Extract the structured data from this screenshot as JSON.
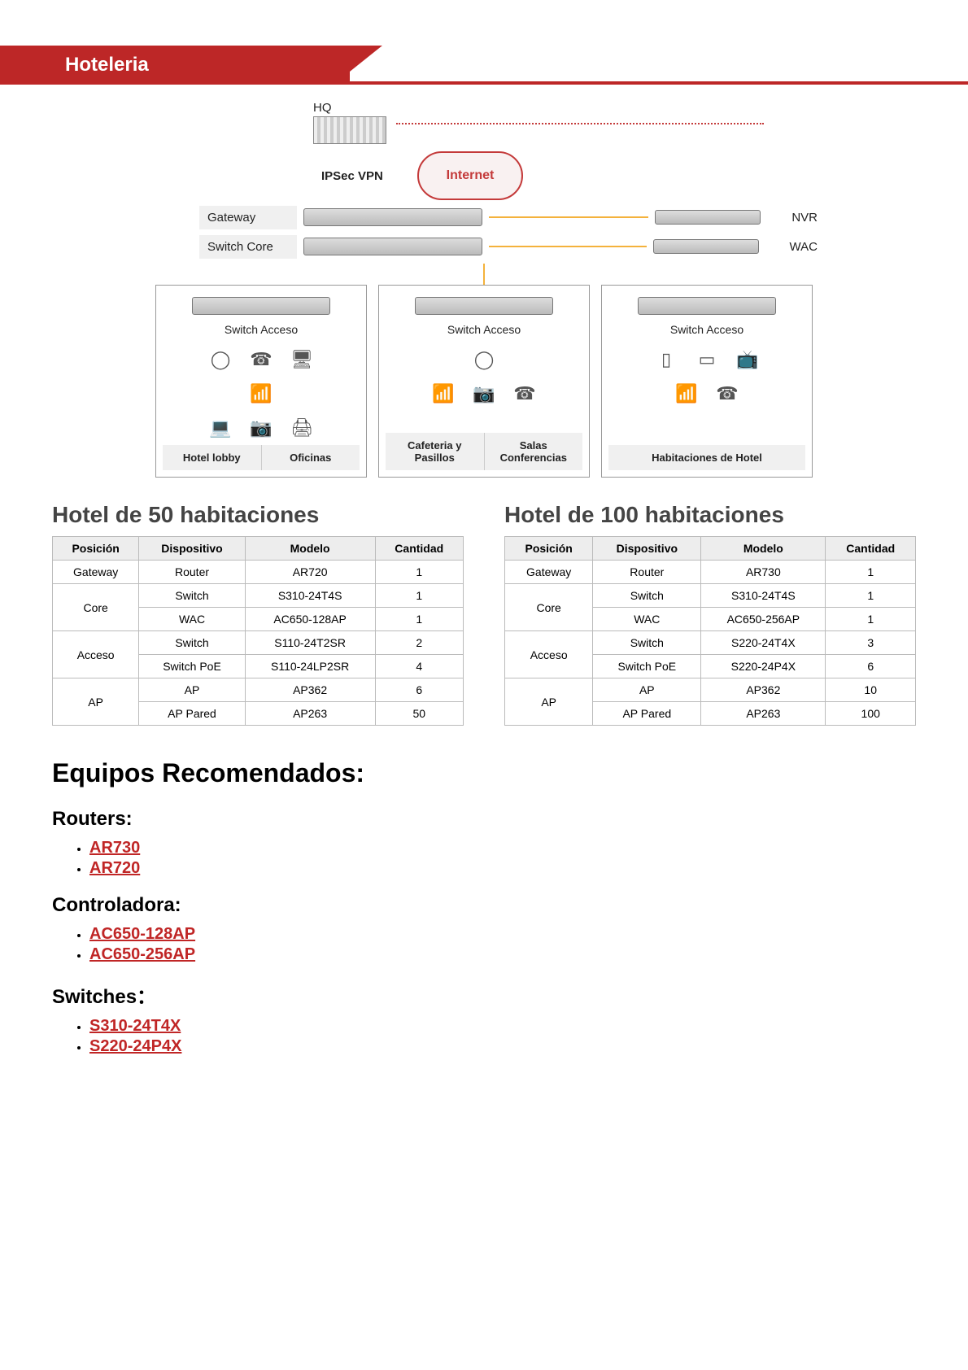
{
  "colors": {
    "brand_red": "#bd2727",
    "link_red": "#c02626",
    "cloud_border": "#c43a3a",
    "gold_line": "#f4b23c",
    "header_bg": "#ededed",
    "border": "#bbbbbb",
    "bg": "#ffffff"
  },
  "header": {
    "title": "Hoteleria"
  },
  "diagram": {
    "hq_label": "HQ",
    "vpn_label": "IPSec VPN",
    "internet_label": "Internet",
    "gateway_label": "Gateway",
    "switchcore_label": "Switch Core",
    "nvr_label": "NVR",
    "wac_label": "WAC",
    "switch_acceso_label": "Switch Acceso",
    "branches": [
      {
        "footers": [
          "Hotel lobby",
          "Oficinas"
        ]
      },
      {
        "footers": [
          "Cafeteria y Pasillos",
          "Salas Conferencias"
        ]
      },
      {
        "footers": [
          "Habitaciones de Hotel"
        ]
      }
    ]
  },
  "table50": {
    "title": "Hotel de 50 habitaciones",
    "columns": [
      "Posición",
      "Dispositivo",
      "Modelo",
      "Cantidad"
    ],
    "groups": [
      {
        "posicion": "Gateway",
        "rows": [
          [
            "Router",
            "AR720",
            "1"
          ]
        ]
      },
      {
        "posicion": "Core",
        "rows": [
          [
            "Switch",
            "S310-24T4S",
            "1"
          ],
          [
            "WAC",
            "AC650-128AP",
            "1"
          ]
        ]
      },
      {
        "posicion": "Acceso",
        "rows": [
          [
            "Switch",
            "S110-24T2SR",
            "2"
          ],
          [
            "Switch PoE",
            "S110-24LP2SR",
            "4"
          ]
        ]
      },
      {
        "posicion": "AP",
        "rows": [
          [
            "AP",
            "AP362",
            "6"
          ],
          [
            "AP Pared",
            "AP263",
            "50"
          ]
        ]
      }
    ]
  },
  "table100": {
    "title": "Hotel de 100 habitaciones",
    "columns": [
      "Posición",
      "Dispositivo",
      "Modelo",
      "Cantidad"
    ],
    "groups": [
      {
        "posicion": "Gateway",
        "rows": [
          [
            "Router",
            "AR730",
            "1"
          ]
        ]
      },
      {
        "posicion": "Core",
        "rows": [
          [
            "Switch",
            "S310-24T4S",
            "1"
          ],
          [
            "WAC",
            "AC650-256AP",
            "1"
          ]
        ]
      },
      {
        "posicion": "Acceso",
        "rows": [
          [
            "Switch",
            "S220-24T4X",
            "3"
          ],
          [
            "Switch PoE",
            "S220-24P4X",
            "6"
          ]
        ]
      },
      {
        "posicion": "AP",
        "rows": [
          [
            "AP",
            "AP362",
            "10"
          ],
          [
            "AP Pared",
            "AP263",
            "100"
          ]
        ]
      }
    ]
  },
  "recommended": {
    "title": "Equipos Recomendados:",
    "categories": [
      {
        "name": "Routers:",
        "models": [
          "AR730",
          "AR720"
        ]
      },
      {
        "name": "Controladora:",
        "models": [
          "AC650-128AP",
          "AC650-256AP"
        ]
      },
      {
        "name": "Switches：",
        "models": [
          "S310-24T4X",
          "S220-24P4X"
        ]
      }
    ]
  }
}
